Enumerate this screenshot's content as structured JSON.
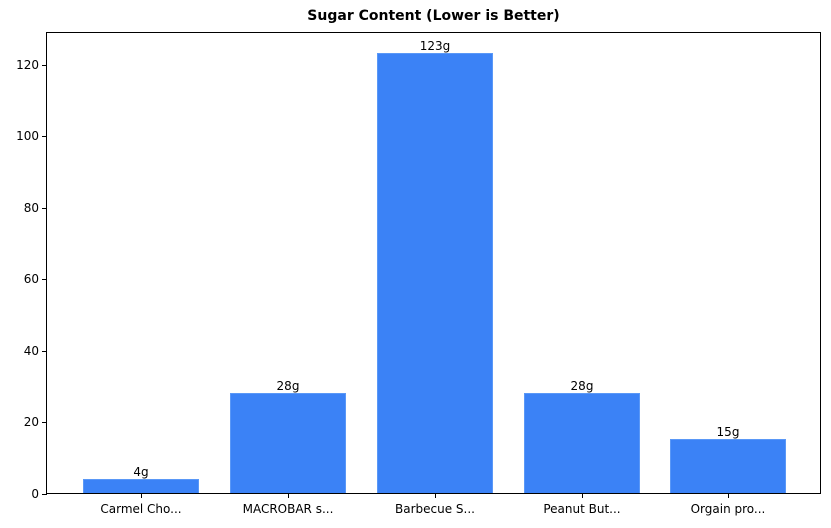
{
  "chart_data": {
    "type": "bar",
    "title": "Sugar Content (Lower is Better)",
    "xlabel": "",
    "ylabel": "",
    "categories": [
      "Carmel Cho...",
      "MACROBAR s...",
      "Barbecue S...",
      "Peanut But...",
      "Orgain pro..."
    ],
    "values": [
      4,
      28,
      123,
      28,
      15
    ],
    "value_labels": [
      "4g",
      "28g",
      "123g",
      "28g",
      "15g"
    ],
    "ylim": [
      0,
      129.2
    ],
    "yticks": [
      0,
      20,
      40,
      60,
      80,
      100,
      120
    ],
    "grid": false,
    "bar_color": "#3b82f6"
  }
}
